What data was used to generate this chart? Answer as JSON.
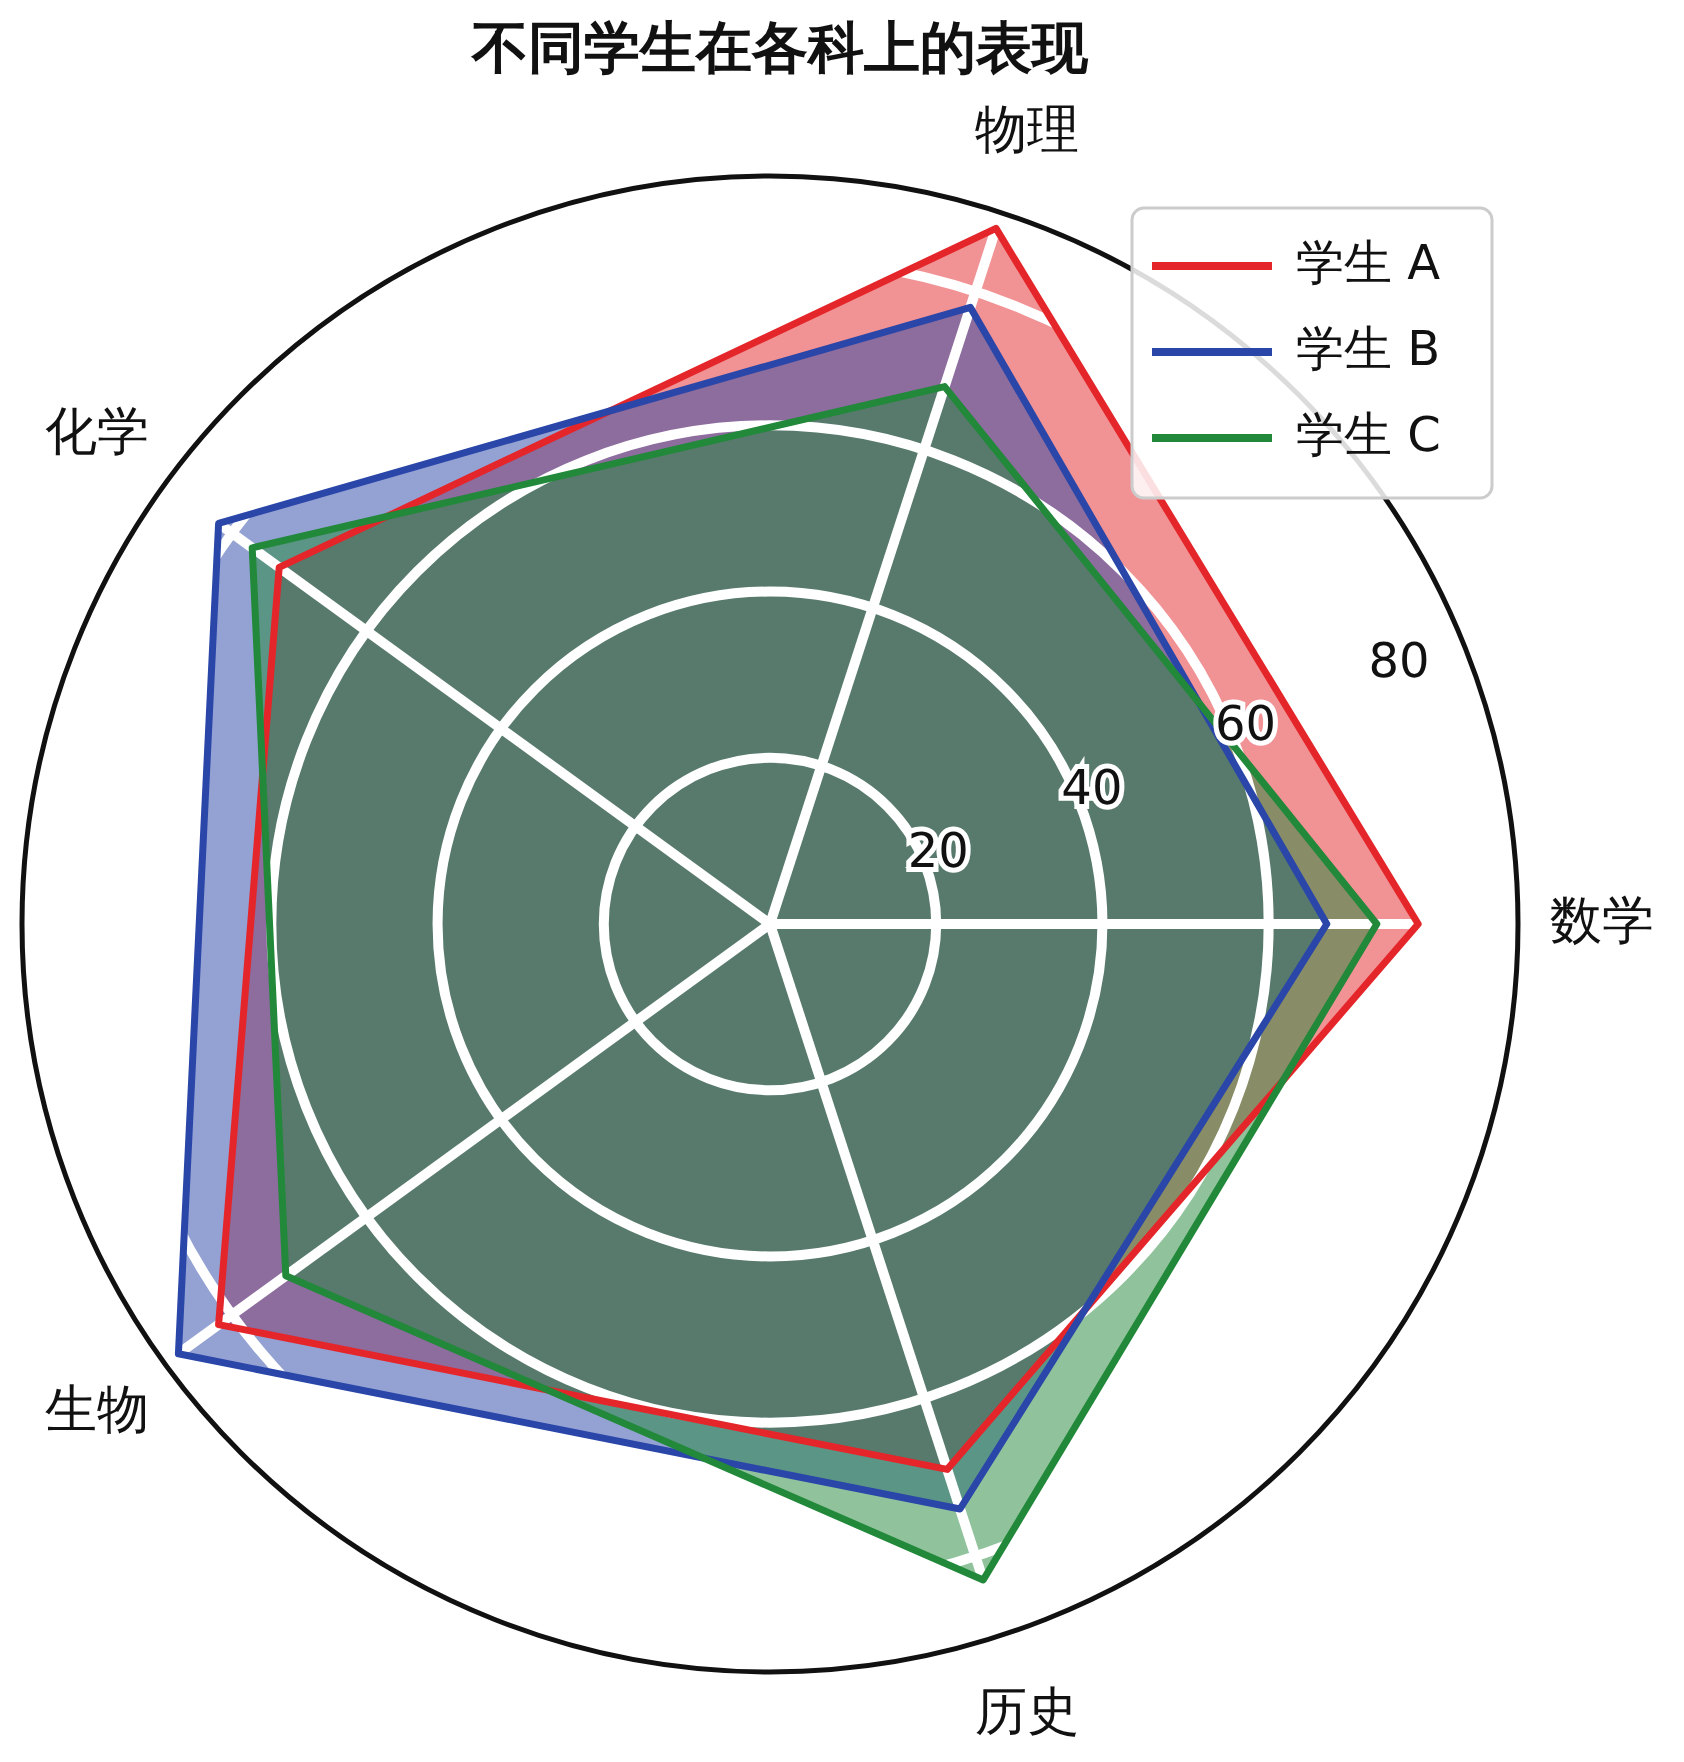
{
  "chart_data": {
    "type": "radar",
    "title": "不同学生在各科上的表现",
    "categories": [
      "物理",
      "数学",
      "历史",
      "生物",
      "化学"
    ],
    "series": [
      {
        "name": "学生 A",
        "color": "#e4262a",
        "values": [
          88,
          78,
          69,
          82,
          73
        ]
      },
      {
        "name": "学生 B",
        "color": "#2a46a8",
        "values": [
          78,
          67,
          74,
          88,
          82
        ]
      },
      {
        "name": "学生 C",
        "color": "#22883a",
        "values": [
          68,
          73,
          83,
          72,
          77
        ]
      }
    ],
    "ylim": [
      0,
      90
    ],
    "yticks": [
      20,
      40,
      60,
      80
    ],
    "grid": true,
    "legend": "top right"
  }
}
